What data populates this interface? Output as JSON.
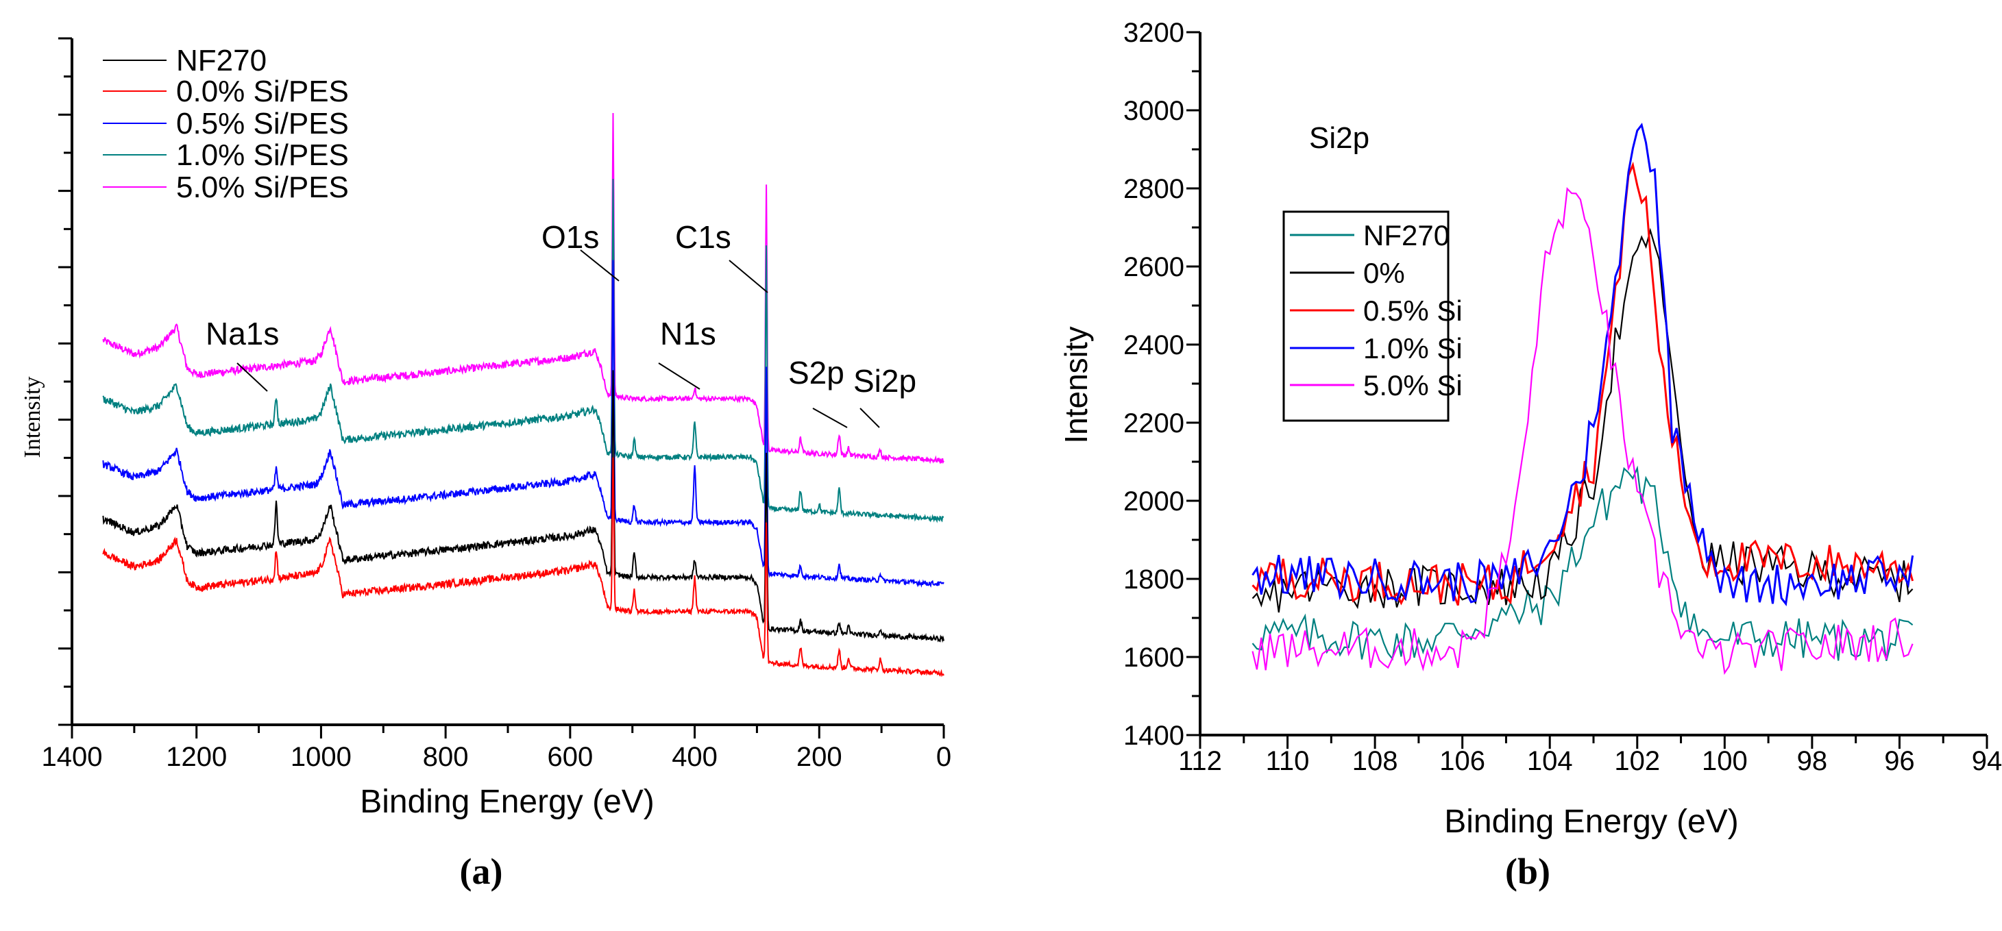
{
  "chart_data": [
    {
      "type": "line",
      "panel_label": "(a)",
      "xlabel": "Binding Energy (eV)",
      "ylabel": "Intensity",
      "xlim": [
        1400,
        0
      ],
      "ylim": [
        0,
        100
      ],
      "y_units": "arbitrary (no tick labels)",
      "xticks": [
        "1400",
        "1200",
        "1000",
        "800",
        "600",
        "400",
        "200",
        "0"
      ],
      "legend_position": "top-left",
      "annotations": [
        "O1s",
        "C1s",
        "Na1s",
        "N1s",
        "S2p",
        "Si2p"
      ],
      "baseline_profile": [
        [
          1350,
          56
        ],
        [
          1300,
          54
        ],
        [
          1260,
          55
        ],
        [
          1232,
          58
        ],
        [
          1215,
          52
        ],
        [
          1200,
          51
        ],
        [
          1100,
          52
        ],
        [
          1010,
          53
        ],
        [
          1000,
          54
        ],
        [
          985,
          58
        ],
        [
          975,
          54
        ],
        [
          965,
          50
        ],
        [
          800,
          51.5
        ],
        [
          600,
          53.5
        ],
        [
          560,
          54.5
        ],
        [
          550,
          52
        ],
        [
          540,
          48
        ],
        [
          535,
          48
        ],
        [
          500,
          47.5
        ],
        [
          310,
          47.5
        ],
        [
          300,
          46.5
        ],
        [
          290,
          41
        ],
        [
          280,
          40
        ],
        [
          200,
          39.5
        ],
        [
          0,
          38.5
        ]
      ],
      "series": [
        {
          "name": "NF270",
          "color": "#000000",
          "offset": -26,
          "peaks": [
            [
              1072,
              6
            ],
            [
              531,
              30
            ],
            [
              497,
              3.5
            ],
            [
              400,
              2.5
            ],
            [
              285,
              25
            ],
            [
              230,
              1.5
            ],
            [
              168,
              1.5
            ],
            [
              153,
              1
            ],
            [
              102,
              1
            ]
          ]
        },
        {
          "name": "0.0% Si/PES",
          "color": "#ff0000",
          "offset": -31,
          "peaks": [
            [
              1072,
              4
            ],
            [
              531,
              22
            ],
            [
              497,
              3
            ],
            [
              400,
              5
            ],
            [
              285,
              20
            ],
            [
              230,
              2.5
            ],
            [
              168,
              2.5
            ],
            [
              153,
              1.5
            ],
            [
              102,
              1.5
            ]
          ]
        },
        {
          "name": "0.5% Si/PES",
          "color": "#0000ff",
          "offset": -18,
          "peaks": [
            [
              1072,
              3
            ],
            [
              531,
              38
            ],
            [
              497,
              2.5
            ],
            [
              400,
              8
            ],
            [
              285,
              30
            ],
            [
              230,
              1.5
            ],
            [
              168,
              2
            ],
            [
              102,
              1
            ]
          ]
        },
        {
          "name": "1.0% Si/PES",
          "color": "#008080",
          "offset": -8.5,
          "peaks": [
            [
              1072,
              4
            ],
            [
              531,
              40
            ],
            [
              497,
              2.5
            ],
            [
              400,
              5
            ],
            [
              285,
              38
            ],
            [
              230,
              3
            ],
            [
              200,
              1
            ],
            [
              168,
              3.5
            ]
          ]
        },
        {
          "name": "5.0% Si/PES",
          "color": "#ff00ff",
          "offset": 0,
          "peaks": [
            [
              531,
              41.5
            ],
            [
              400,
              1.5
            ],
            [
              285,
              38
            ],
            [
              230,
              2
            ],
            [
              168,
              3
            ],
            [
              153,
              1
            ],
            [
              102,
              1
            ]
          ]
        }
      ]
    },
    {
      "type": "line",
      "panel_label": "(b)",
      "title": "Si2p",
      "xlabel": "Binding Energy (eV)",
      "ylabel": "Intensity",
      "xlim": [
        112,
        94
      ],
      "ylim": [
        1400,
        3200
      ],
      "xticks": [
        "112",
        "110",
        "108",
        "106",
        "104",
        "102",
        "100",
        "98",
        "96",
        "94"
      ],
      "yticks": [
        "1400",
        "1600",
        "1800",
        "2000",
        "2200",
        "2400",
        "2600",
        "2800",
        "3000",
        "3200"
      ],
      "legend_position": "upper-left",
      "series": [
        {
          "name": "NF270",
          "color": "#008080",
          "points": [
            [
              110.8,
              1660
            ],
            [
              107,
              1640
            ],
            [
              105,
              1700
            ],
            [
              104,
              1740
            ],
            [
              103,
              1950
            ],
            [
              102.2,
              2080
            ],
            [
              101.6,
              1990
            ],
            [
              101,
              1750
            ],
            [
              100.5,
              1650
            ],
            [
              95.7,
              1640
            ]
          ]
        },
        {
          "name": "0%",
          "color": "#000000",
          "points": [
            [
              110.8,
              1720
            ],
            [
              110,
              1780
            ],
            [
              105,
              1780
            ],
            [
              104,
              1800
            ],
            [
              103,
              2050
            ],
            [
              102.5,
              2400
            ],
            [
              102,
              2620
            ],
            [
              101.7,
              2700
            ],
            [
              101.3,
              2450
            ],
            [
              101,
              2100
            ],
            [
              100.5,
              1850
            ],
            [
              95.7,
              1790
            ]
          ]
        },
        {
          "name": "0.5% Si",
          "color": "#ff0000",
          "points": [
            [
              110.8,
              1810
            ],
            [
              105,
              1780
            ],
            [
              104,
              1900
            ],
            [
              103,
              2100
            ],
            [
              102.5,
              2500
            ],
            [
              102.2,
              2850
            ],
            [
              101.8,
              2750
            ],
            [
              101.4,
              2300
            ],
            [
              101,
              2050
            ],
            [
              100.5,
              1850
            ],
            [
              95.7,
              1830
            ]
          ]
        },
        {
          "name": "1.0% Si",
          "color": "#0000ff",
          "points": [
            [
              110.8,
              1810
            ],
            [
              105,
              1790
            ],
            [
              104,
              1870
            ],
            [
              103.2,
              2100
            ],
            [
              102.6,
              2450
            ],
            [
              102,
              3000
            ],
            [
              101.6,
              2850
            ],
            [
              101.2,
              2200
            ],
            [
              100.6,
              1950
            ],
            [
              100,
              1780
            ],
            [
              95.7,
              1810
            ]
          ]
        },
        {
          "name": "5.0% Si",
          "color": "#ff00ff",
          "points": [
            [
              110.8,
              1620
            ],
            [
              106,
              1620
            ],
            [
              105.5,
              1700
            ],
            [
              105,
              1850
            ],
            [
              104.6,
              2100
            ],
            [
              104.2,
              2550
            ],
            [
              103.6,
              2790
            ],
            [
              103,
              2650
            ],
            [
              102.5,
              2300
            ],
            [
              102,
              2000
            ],
            [
              101.5,
              1820
            ],
            [
              101,
              1690
            ],
            [
              100.5,
              1600
            ],
            [
              95.7,
              1650
            ]
          ]
        }
      ]
    }
  ]
}
